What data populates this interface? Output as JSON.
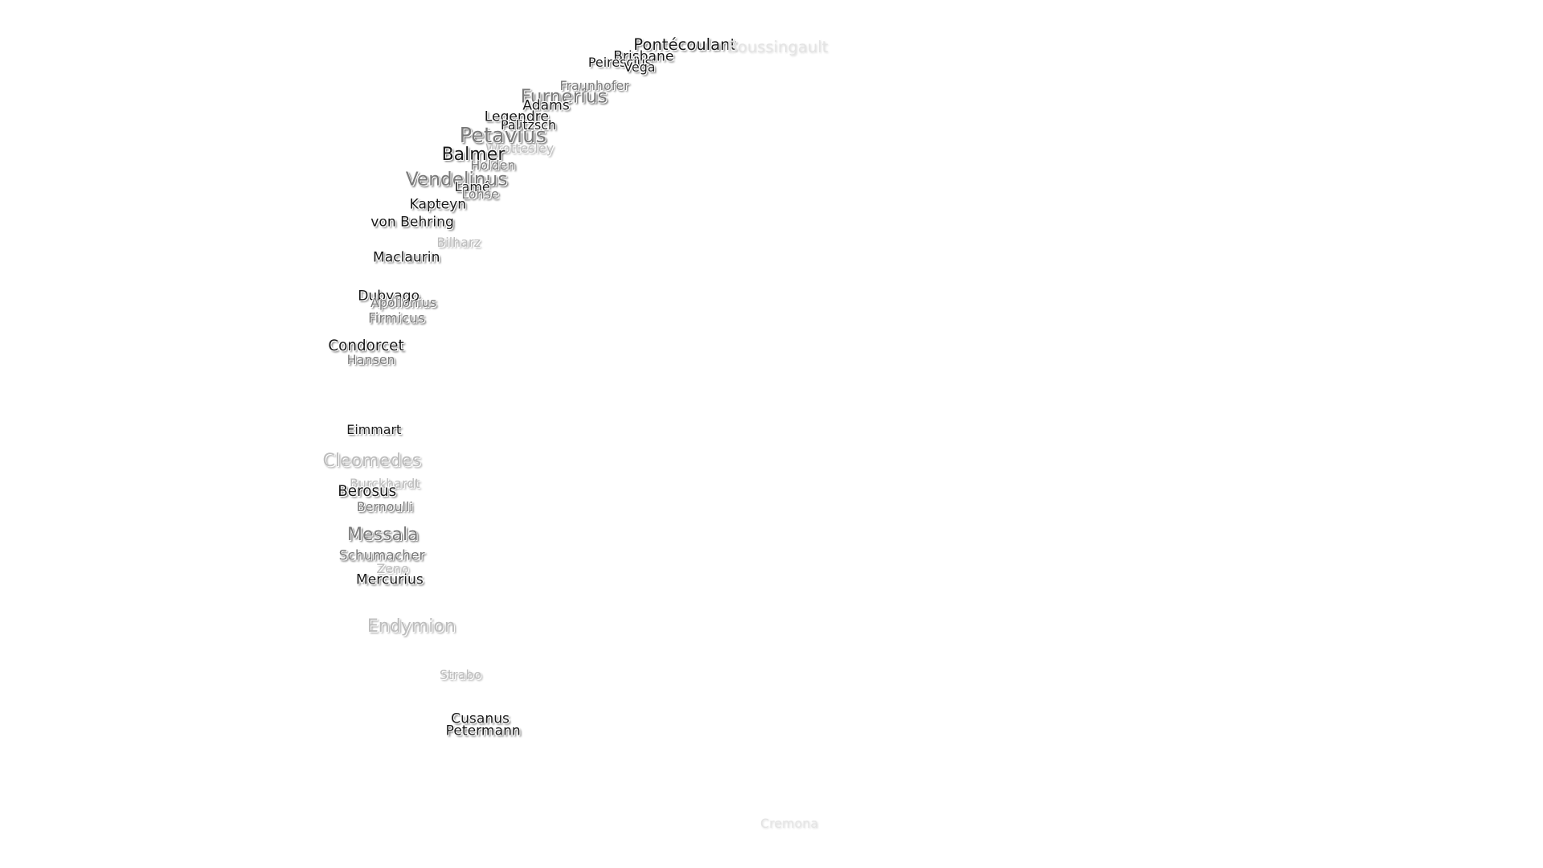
{
  "labels": [
    "Pontécoulant",
    "Boussingault",
    "Brisbane",
    "Peirescius",
    "Vega",
    "Fraunhofer",
    "Furnerius",
    "Adams",
    "Legendre",
    "Palitzsch",
    "Petavius",
    "Wrottesley",
    "Balmer",
    "Holden",
    "Vendelinus",
    "Lamé",
    "Lohse",
    "Kapteyn",
    "von Behring",
    "Bilharz",
    "Maclaurin",
    "Dubyago",
    "Apollonius",
    "Firmicus",
    "Condorcet",
    "Hansen",
    "Eimmart",
    "Cleomedes",
    "Burckhardt",
    "Berosus",
    "Bernoulli",
    "Messala",
    "Schumacher",
    "Zeno",
    "Mercurius",
    "Endymion",
    "Strabo",
    "Cusanus",
    "Petermann",
    "Cremona"
  ]
}
